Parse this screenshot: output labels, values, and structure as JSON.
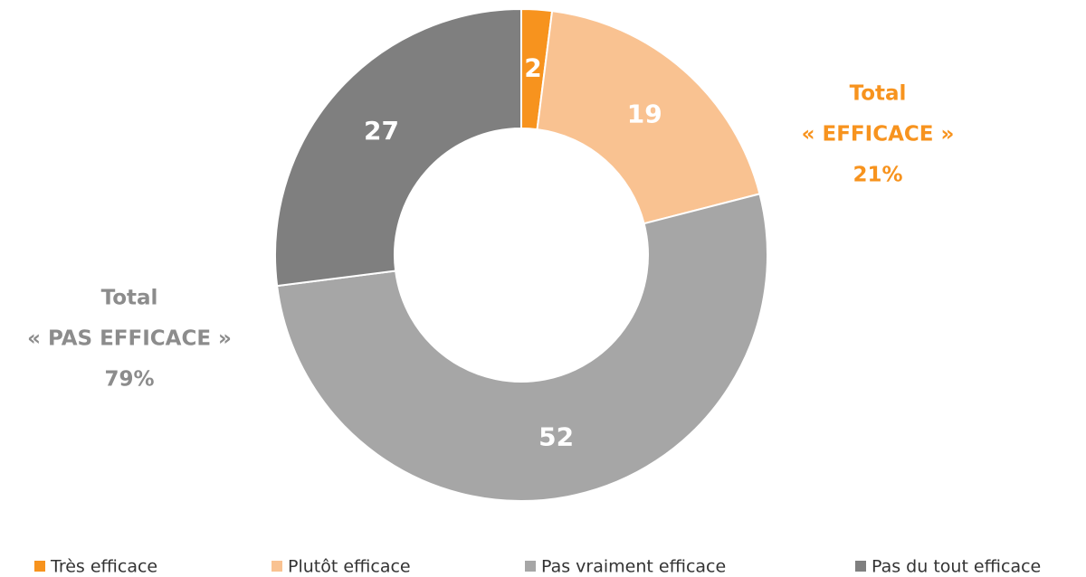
{
  "chart_data": {
    "type": "donut",
    "categories": [
      "Très efficace",
      "Plutôt efficace",
      "Pas vraiment efficace",
      "Pas du tout efficace"
    ],
    "values": [
      2,
      19,
      52,
      27
    ],
    "colors": [
      "#f7931e",
      "#f9c291",
      "#a6a6a6",
      "#7f7f7f"
    ],
    "legend": "bottom",
    "annotations": [
      {
        "lines": [
          "Total",
          "« EFFICACE »",
          "21%"
        ],
        "color": "#f7931e"
      },
      {
        "lines": [
          "Total",
          "« PAS EFFICACE »",
          "79%"
        ],
        "color": "#8c8c8c"
      }
    ]
  }
}
